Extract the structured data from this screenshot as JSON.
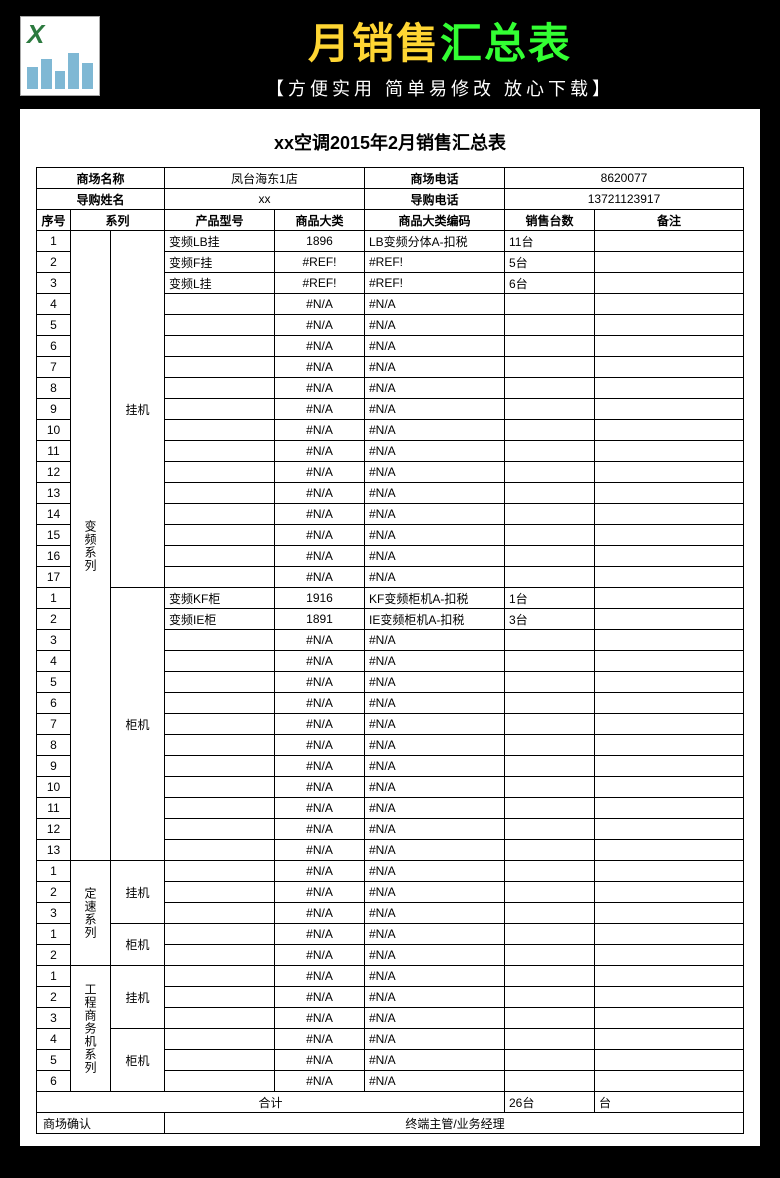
{
  "banner": {
    "title_part1": "月销售",
    "title_part2": "汇总表",
    "subtitle": "【方便实用  简单易修改  放心下载】",
    "icon_letter": "X"
  },
  "sheet_title": "xx空调2015年2月销售汇总表",
  "info": {
    "store_name_label": "商场名称",
    "store_name_value": "凤台海东1店",
    "store_phone_label": "商场电话",
    "store_phone_value": "8620077",
    "guide_name_label": "导购姓名",
    "guide_name_value": "xx",
    "guide_phone_label": "导购电话",
    "guide_phone_value": "13721123917"
  },
  "columns": {
    "seq": "序号",
    "series": "系列",
    "model": "产品型号",
    "category": "商品大类",
    "code": "商品大类编码",
    "qty": "销售台数",
    "note": "备注"
  },
  "groups": [
    {
      "series": "变频系列",
      "subgroups": [
        {
          "name": "挂机",
          "rows": [
            {
              "seq": "1",
              "model": "变频LB挂",
              "cat": "1896",
              "code": "LB变频分体A-扣税",
              "qty": "11台",
              "note": ""
            },
            {
              "seq": "2",
              "model": "变频F挂",
              "cat": "#REF!",
              "code": "#REF!",
              "qty": "5台",
              "note": ""
            },
            {
              "seq": "3",
              "model": "变频L挂",
              "cat": "#REF!",
              "code": "#REF!",
              "qty": "6台",
              "note": ""
            },
            {
              "seq": "4",
              "model": "",
              "cat": "#N/A",
              "code": "#N/A",
              "qty": "",
              "note": ""
            },
            {
              "seq": "5",
              "model": "",
              "cat": "#N/A",
              "code": "#N/A",
              "qty": "",
              "note": ""
            },
            {
              "seq": "6",
              "model": "",
              "cat": "#N/A",
              "code": "#N/A",
              "qty": "",
              "note": ""
            },
            {
              "seq": "7",
              "model": "",
              "cat": "#N/A",
              "code": "#N/A",
              "qty": "",
              "note": ""
            },
            {
              "seq": "8",
              "model": "",
              "cat": "#N/A",
              "code": "#N/A",
              "qty": "",
              "note": ""
            },
            {
              "seq": "9",
              "model": "",
              "cat": "#N/A",
              "code": "#N/A",
              "qty": "",
              "note": ""
            },
            {
              "seq": "10",
              "model": "",
              "cat": "#N/A",
              "code": "#N/A",
              "qty": "",
              "note": ""
            },
            {
              "seq": "11",
              "model": "",
              "cat": "#N/A",
              "code": "#N/A",
              "qty": "",
              "note": ""
            },
            {
              "seq": "12",
              "model": "",
              "cat": "#N/A",
              "code": "#N/A",
              "qty": "",
              "note": ""
            },
            {
              "seq": "13",
              "model": "",
              "cat": "#N/A",
              "code": "#N/A",
              "qty": "",
              "note": ""
            },
            {
              "seq": "14",
              "model": "",
              "cat": "#N/A",
              "code": "#N/A",
              "qty": "",
              "note": ""
            },
            {
              "seq": "15",
              "model": "",
              "cat": "#N/A",
              "code": "#N/A",
              "qty": "",
              "note": ""
            },
            {
              "seq": "16",
              "model": "",
              "cat": "#N/A",
              "code": "#N/A",
              "qty": "",
              "note": ""
            },
            {
              "seq": "17",
              "model": "",
              "cat": "#N/A",
              "code": "#N/A",
              "qty": "",
              "note": ""
            }
          ]
        },
        {
          "name": "柜机",
          "rows": [
            {
              "seq": "1",
              "model": "变频KF柜",
              "cat": "1916",
              "code": "KF变频柜机A-扣税",
              "qty": "1台",
              "note": ""
            },
            {
              "seq": "2",
              "model": "变频IE柜",
              "cat": "1891",
              "code": "IE变频柜机A-扣税",
              "qty": "3台",
              "note": ""
            },
            {
              "seq": "3",
              "model": "",
              "cat": "#N/A",
              "code": "#N/A",
              "qty": "",
              "note": ""
            },
            {
              "seq": "4",
              "model": "",
              "cat": "#N/A",
              "code": "#N/A",
              "qty": "",
              "note": ""
            },
            {
              "seq": "5",
              "model": "",
              "cat": "#N/A",
              "code": "#N/A",
              "qty": "",
              "note": ""
            },
            {
              "seq": "6",
              "model": "",
              "cat": "#N/A",
              "code": "#N/A",
              "qty": "",
              "note": ""
            },
            {
              "seq": "7",
              "model": "",
              "cat": "#N/A",
              "code": "#N/A",
              "qty": "",
              "note": ""
            },
            {
              "seq": "8",
              "model": "",
              "cat": "#N/A",
              "code": "#N/A",
              "qty": "",
              "note": ""
            },
            {
              "seq": "9",
              "model": "",
              "cat": "#N/A",
              "code": "#N/A",
              "qty": "",
              "note": ""
            },
            {
              "seq": "10",
              "model": "",
              "cat": "#N/A",
              "code": "#N/A",
              "qty": "",
              "note": ""
            },
            {
              "seq": "11",
              "model": "",
              "cat": "#N/A",
              "code": "#N/A",
              "qty": "",
              "note": ""
            },
            {
              "seq": "12",
              "model": "",
              "cat": "#N/A",
              "code": "#N/A",
              "qty": "",
              "note": ""
            },
            {
              "seq": "13",
              "model": "",
              "cat": "#N/A",
              "code": "#N/A",
              "qty": "",
              "note": ""
            }
          ]
        }
      ]
    },
    {
      "series": "定速系列",
      "subgroups": [
        {
          "name": "挂机",
          "rows": [
            {
              "seq": "1",
              "model": "",
              "cat": "#N/A",
              "code": "#N/A",
              "qty": "",
              "note": ""
            },
            {
              "seq": "2",
              "model": "",
              "cat": "#N/A",
              "code": "#N/A",
              "qty": "",
              "note": ""
            },
            {
              "seq": "3",
              "model": "",
              "cat": "#N/A",
              "code": "#N/A",
              "qty": "",
              "note": ""
            }
          ]
        },
        {
          "name": "柜机",
          "rows": [
            {
              "seq": "1",
              "model": "",
              "cat": "#N/A",
              "code": "#N/A",
              "qty": "",
              "note": ""
            },
            {
              "seq": "2",
              "model": "",
              "cat": "#N/A",
              "code": "#N/A",
              "qty": "",
              "note": ""
            }
          ]
        }
      ]
    },
    {
      "series": "工程商务机系列",
      "subgroups": [
        {
          "name": "挂机",
          "rows": [
            {
              "seq": "1",
              "model": "",
              "cat": "#N/A",
              "code": "#N/A",
              "qty": "",
              "note": ""
            },
            {
              "seq": "2",
              "model": "",
              "cat": "#N/A",
              "code": "#N/A",
              "qty": "",
              "note": ""
            },
            {
              "seq": "3",
              "model": "",
              "cat": "#N/A",
              "code": "#N/A",
              "qty": "",
              "note": ""
            }
          ]
        },
        {
          "name": "柜机",
          "rows": [
            {
              "seq": "4",
              "model": "",
              "cat": "#N/A",
              "code": "#N/A",
              "qty": "",
              "note": ""
            },
            {
              "seq": "5",
              "model": "",
              "cat": "#N/A",
              "code": "#N/A",
              "qty": "",
              "note": ""
            },
            {
              "seq": "6",
              "model": "",
              "cat": "#N/A",
              "code": "#N/A",
              "qty": "",
              "note": ""
            }
          ]
        }
      ]
    }
  ],
  "total": {
    "label": "合计",
    "qty": "26台",
    "note": "台"
  },
  "footer": {
    "confirm": "商场确认",
    "manager": "终端主管/业务经理"
  }
}
